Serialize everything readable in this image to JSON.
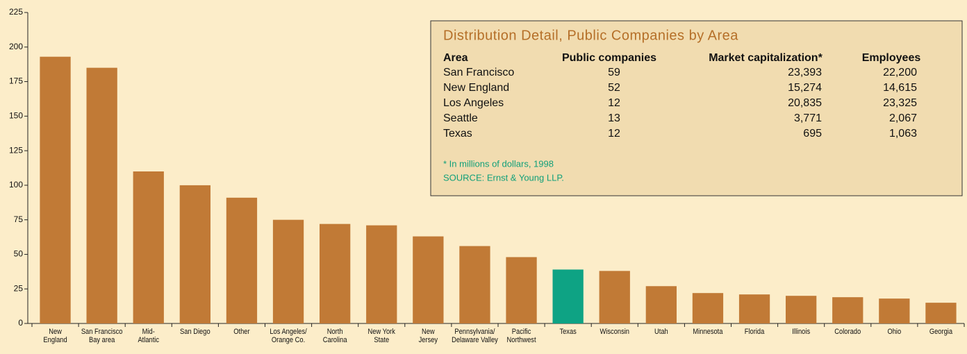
{
  "chart_data": {
    "type": "bar",
    "categories": [
      "New\nEngland",
      "San Francisco\nBay area",
      "Mid-\nAtlantic",
      "San Diego",
      "Other",
      "Los Angeles/\nOrange Co.",
      "North\nCarolina",
      "New York\nState",
      "New\nJersey",
      "Pennsylvania/\nDelaware Valley",
      "Pacific\nNorthwest",
      "Texas",
      "Wisconsin",
      "Utah",
      "Minnesota",
      "Florida",
      "Illinois",
      "Colorado",
      "Ohio",
      "Georgia"
    ],
    "values": [
      193,
      185,
      110,
      100,
      91,
      75,
      72,
      71,
      63,
      56,
      48,
      39,
      38,
      27,
      22,
      21,
      20,
      19,
      18,
      15
    ],
    "colors": [
      "#c17a36",
      "#c17a36",
      "#c17a36",
      "#c17a36",
      "#c17a36",
      "#c17a36",
      "#c17a36",
      "#c17a36",
      "#c17a36",
      "#c17a36",
      "#c17a36",
      "#0ea384",
      "#c17a36",
      "#c17a36",
      "#c17a36",
      "#c17a36",
      "#c17a36",
      "#c17a36",
      "#c17a36",
      "#c17a36"
    ],
    "ylim": [
      0,
      225
    ],
    "yticks": [
      0,
      25,
      50,
      75,
      100,
      125,
      150,
      175,
      200,
      225
    ],
    "grid": false
  },
  "table": {
    "title": "Distribution Detail, Public Companies by Area",
    "columns": [
      "Area",
      "Public companies",
      "Market capitalization*",
      "Employees"
    ],
    "rows": [
      [
        "San Francisco",
        "59",
        "23,393",
        "22,200"
      ],
      [
        "New England",
        "52",
        "15,274",
        "14,615"
      ],
      [
        "Los Angeles",
        "12",
        "20,835",
        "23,325"
      ],
      [
        "Seattle",
        "13",
        "3,771",
        "2,067"
      ],
      [
        "Texas",
        "12",
        "695",
        "1,063"
      ]
    ],
    "footnote": "* In millions of dollars, 1998",
    "source": "SOURCE: Ernst & Young LLP."
  }
}
